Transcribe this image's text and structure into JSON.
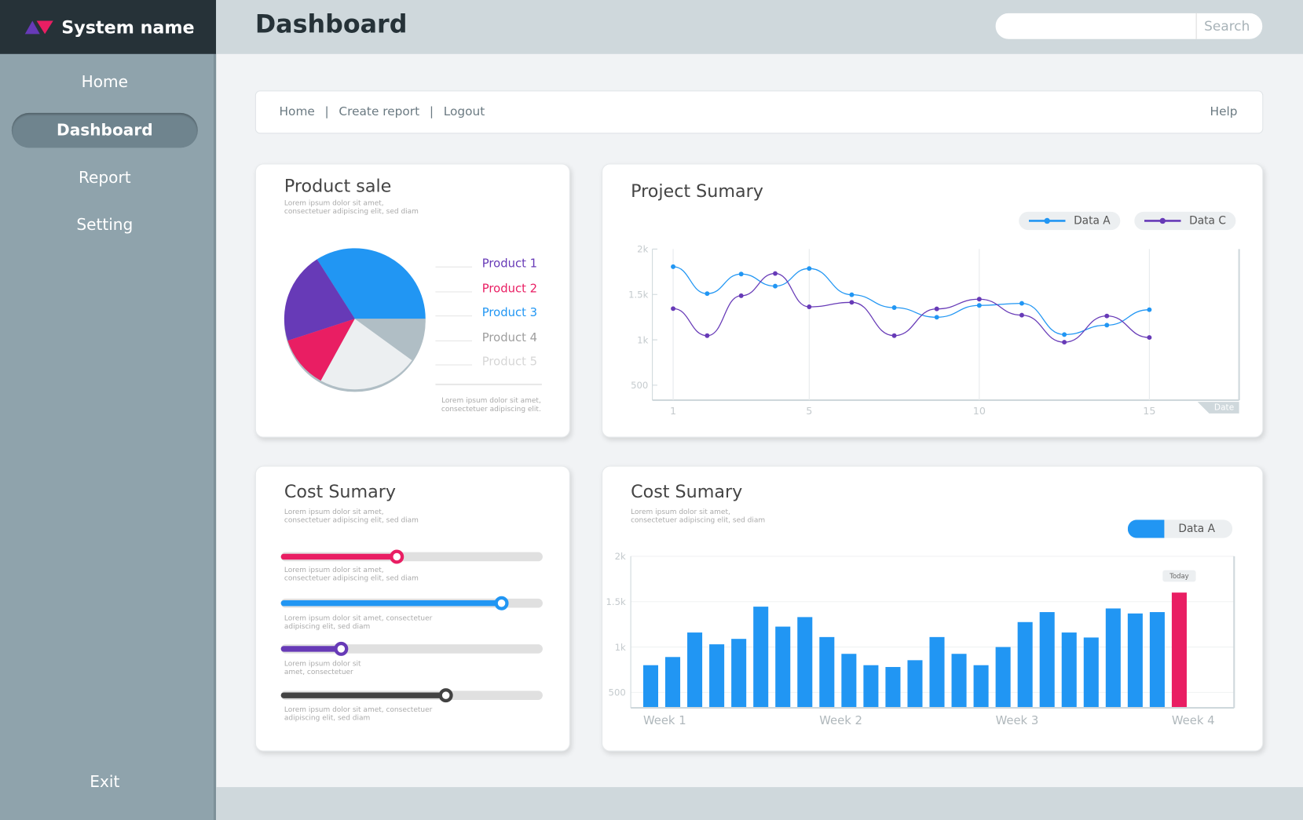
{
  "app": {
    "name": "System name",
    "page_title": "Dashboard"
  },
  "sidebar": {
    "items": [
      {
        "label": "Home"
      },
      {
        "label": "Dashboard",
        "active": true
      },
      {
        "label": "Report"
      },
      {
        "label": "Setting"
      }
    ],
    "exit": "Exit"
  },
  "search": {
    "placeholder": "",
    "button": "Search"
  },
  "navbar": {
    "links": [
      "Home",
      "Create report",
      "Logout"
    ],
    "sep": "|",
    "help": "Help"
  },
  "lorem": {
    "a1": "Lorem ipsum dolor sit amet,",
    "a2": "consectetuer adipiscing elit, sed diam",
    "b1": "Lorem ipsum dolor sit amet,",
    "b2": "consectetuer adipiscing elit.",
    "c1": "Lorem ipsum dolor sit amet, consectetuer",
    "c2": "adipiscing elit, sed diam",
    "d1": "Lorem ipsum dolor sit",
    "d2": "amet, consectetuer"
  },
  "product_sale": {
    "title": "Product sale"
  },
  "cost_sliders": {
    "title": "Cost Sumary",
    "sliders": [
      {
        "value": 0.44,
        "color": "#e91e63"
      },
      {
        "value": 0.84,
        "color": "#2196f3"
      },
      {
        "value": 0.23,
        "color": "#673ab7"
      },
      {
        "value": 0.63,
        "color": "#424242"
      }
    ]
  },
  "chart_data": [
    {
      "type": "pie",
      "title": "Product sale",
      "slices": [
        {
          "label": "Product 1",
          "value": 21,
          "color": "#673ab7"
        },
        {
          "label": "Product 2",
          "value": 12,
          "color": "#e91e63"
        },
        {
          "label": "Product 3",
          "value": 34,
          "color": "#2196f3"
        },
        {
          "label": "Product 4",
          "value": 10,
          "color": "#b0bec5",
          "text_color": "#9e9e9e"
        },
        {
          "label": "Product 5",
          "value": 23,
          "color": "#eceff1",
          "text_color": "#d6d6d6"
        }
      ]
    },
    {
      "type": "line",
      "title": "Project Sumary",
      "xlabel": "Date",
      "ylim": [
        335,
        2000
      ],
      "yticks": [
        {
          "v": 2000,
          "label": "2k"
        },
        {
          "v": 1500,
          "label": "1.5k"
        },
        {
          "v": 1000,
          "label": "1k"
        },
        {
          "v": 500,
          "label": "500"
        }
      ],
      "xticks": [
        1,
        5,
        10,
        15
      ],
      "x": [
        1,
        2,
        3,
        4,
        5,
        6.25,
        7.5,
        8.75,
        10,
        11.25,
        12.5,
        13.75,
        15
      ],
      "series": [
        {
          "name": "Data A",
          "color": "#2196f3",
          "values": [
            1806,
            1509,
            1725,
            1592,
            1786,
            1497,
            1355,
            1249,
            1379,
            1402,
            1058,
            1162,
            1332
          ]
        },
        {
          "name": "Data C",
          "color": "#673ab7",
          "values": [
            1344,
            1046,
            1486,
            1731,
            1364,
            1413,
            1046,
            1341,
            1448,
            1272,
            974,
            1263,
            1026
          ]
        }
      ]
    },
    {
      "type": "bar",
      "title": "Cost Sumary",
      "ylim": [
        330,
        2000
      ],
      "yticks": [
        {
          "v": 2000,
          "label": "2k"
        },
        {
          "v": 1500,
          "label": "1.5k"
        },
        {
          "v": 1000,
          "label": "1k"
        },
        {
          "v": 500,
          "label": "500"
        }
      ],
      "xlabels": [
        "Week 1",
        "Week 2",
        "Week 3",
        "Week 4"
      ],
      "legend": "Data A",
      "color": "#2196f3",
      "highlight_color": "#e91e63",
      "highlight_label": "Today",
      "values": [
        800,
        890,
        1160,
        1030,
        1090,
        1445,
        1225,
        1330,
        1110,
        925,
        800,
        780,
        855,
        1110,
        925,
        800,
        1000,
        1275,
        1385,
        1160,
        1105,
        1425,
        1370,
        1385,
        1600
      ]
    }
  ]
}
